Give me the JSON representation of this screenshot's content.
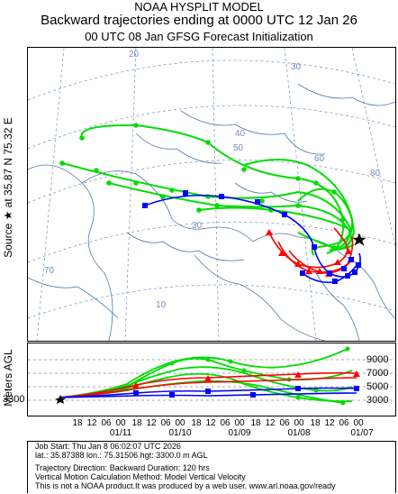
{
  "header": {
    "line1": "NOAA HYSPLIT MODEL",
    "line2": "Backward trajectories ending at 0000 UTC 12 Jan 26",
    "line3": "00 UTC 08 Jan    GFSG  Forecast Initialization"
  },
  "source_label": "Source ★ at   35.87 N   75.32 E",
  "map": {
    "grid_labels": [
      "20",
      "30",
      "40",
      "50",
      "60",
      "70",
      "80",
      "10"
    ],
    "source_marker": "star-icon",
    "colors": {
      "trajectory_1": "#ff0000",
      "trajectory_2": "#0000ff",
      "trajectory_3": "#00dd00",
      "grid": "#6f8fbf",
      "coast": "#5577aa"
    }
  },
  "altitude": {
    "axis_label": "Meters AGL",
    "start_height": "3300",
    "height_labels": [
      "9000",
      "7000",
      "5000",
      "3000"
    ],
    "levels_m": [
      9000,
      7000,
      5000,
      3000
    ],
    "hour_ticks": [
      "18",
      "12",
      "06",
      "00",
      "18",
      "12",
      "06",
      "00",
      "18",
      "12",
      "06",
      "00",
      "18",
      "12",
      "06",
      "00",
      "18",
      "12",
      "06",
      "00"
    ],
    "date_ticks": [
      "01/11",
      "01/10",
      "01/09",
      "01/08",
      "01/07"
    ]
  },
  "info": {
    "job_start": "Job Start: Thu Jan  8 06:02:07 UTC 2026",
    "location": "lat.: 35.87388   lon.: 75.31506   hgt: 3300.0 m AGL",
    "direction": "Trajectory Direction: Backward        Duration: 120 hrs",
    "vertical": "Vertical Motion Calculation Method: Model Vertical Velocity",
    "disclaimer": "This is not a NOAA product.It was produced by a web user. www.arl.noaa.gov/ready"
  }
}
